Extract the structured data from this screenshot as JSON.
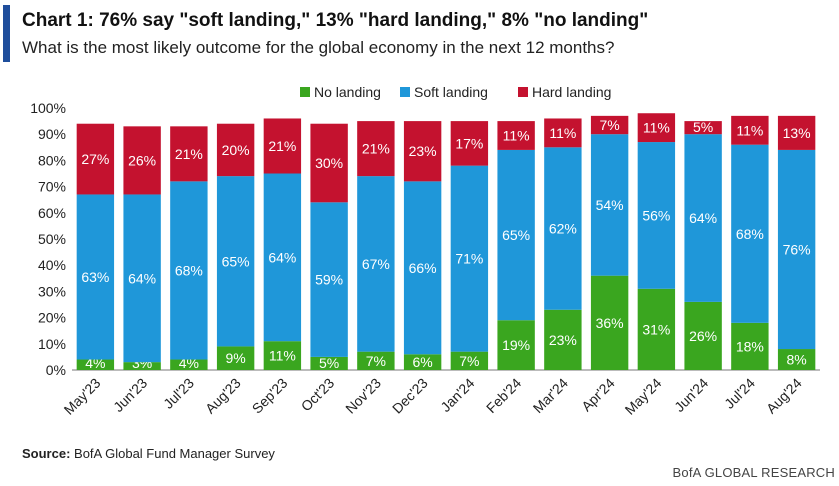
{
  "header": {
    "title": "Chart 1: 76% say \"soft landing,\" 13% \"hard landing,\" 8% \"no landing\"",
    "subtitle": "What is the most likely outcome for the global economy in the next 12 months?"
  },
  "footer": {
    "source_label": "Source:",
    "source_text": "BofA Global Fund Manager Survey",
    "brand": "BofA GLOBAL RESEARCH"
  },
  "chart_data": {
    "type": "bar",
    "stacked": true,
    "categories": [
      "May'23",
      "Jun'23",
      "Jul'23",
      "Aug'23",
      "Sep'23",
      "Oct'23",
      "Nov'23",
      "Dec'23",
      "Jan'24",
      "Feb'24",
      "Mar'24",
      "Apr'24",
      "May'24",
      "Jun'24",
      "Jul'24",
      "Aug'24"
    ],
    "series": [
      {
        "name": "No landing",
        "color": "#3aa61f",
        "values": [
          4,
          3,
          4,
          9,
          11,
          5,
          7,
          6,
          7,
          19,
          23,
          36,
          31,
          26,
          18,
          8
        ]
      },
      {
        "name": "Soft landing",
        "color": "#1f97d9",
        "values": [
          63,
          64,
          68,
          65,
          64,
          59,
          67,
          66,
          71,
          65,
          62,
          54,
          56,
          64,
          68,
          76
        ]
      },
      {
        "name": "Hard landing",
        "color": "#c4122f",
        "values": [
          27,
          26,
          21,
          20,
          21,
          30,
          21,
          23,
          17,
          11,
          11,
          7,
          11,
          5,
          11,
          13
        ]
      }
    ],
    "data_labels": true,
    "label_suffix": "%",
    "ylim": [
      0,
      100
    ],
    "yticks": [
      "0%",
      "10%",
      "20%",
      "30%",
      "40%",
      "50%",
      "60%",
      "70%",
      "80%",
      "90%",
      "100%"
    ],
    "legend_position": "top-center",
    "grid": false
  }
}
